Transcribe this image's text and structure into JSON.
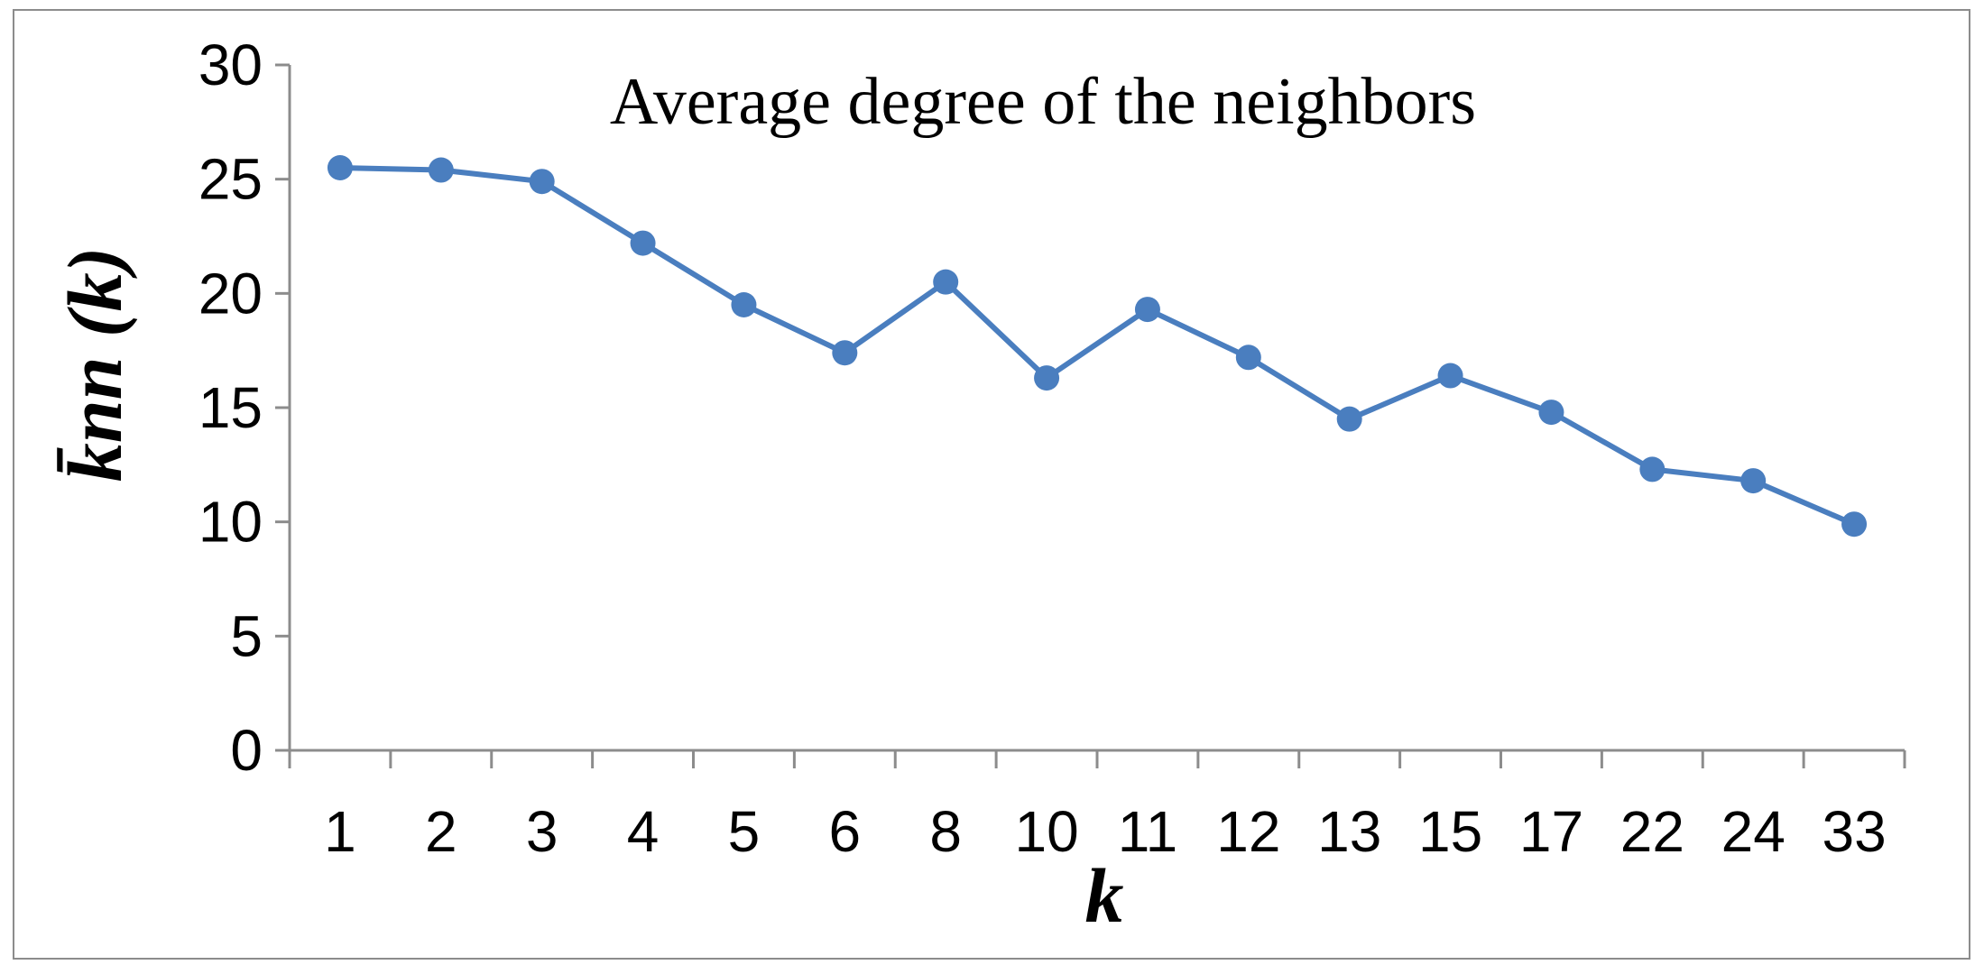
{
  "chart_data": {
    "type": "line",
    "title": "Average  degree  of the neighbors",
    "xlabel": "k",
    "ylabel": "k̄nn (k)",
    "categories": [
      "1",
      "2",
      "3",
      "4",
      "5",
      "6",
      "8",
      "10",
      "11",
      "12",
      "13",
      "15",
      "17",
      "22",
      "24",
      "33"
    ],
    "series": [
      {
        "values": [
          25.5,
          25.4,
          24.9,
          22.2,
          19.5,
          17.4,
          20.5,
          16.3,
          19.3,
          17.2,
          14.5,
          16.4,
          14.8,
          12.3,
          11.8,
          9.9
        ],
        "color": "#4a7ebf"
      }
    ],
    "ylim": [
      0,
      30
    ],
    "yticks": [
      "0",
      "5",
      "10",
      "15",
      "20",
      "25",
      "30"
    ],
    "grid": false,
    "legend": "none",
    "marker": "circle"
  }
}
